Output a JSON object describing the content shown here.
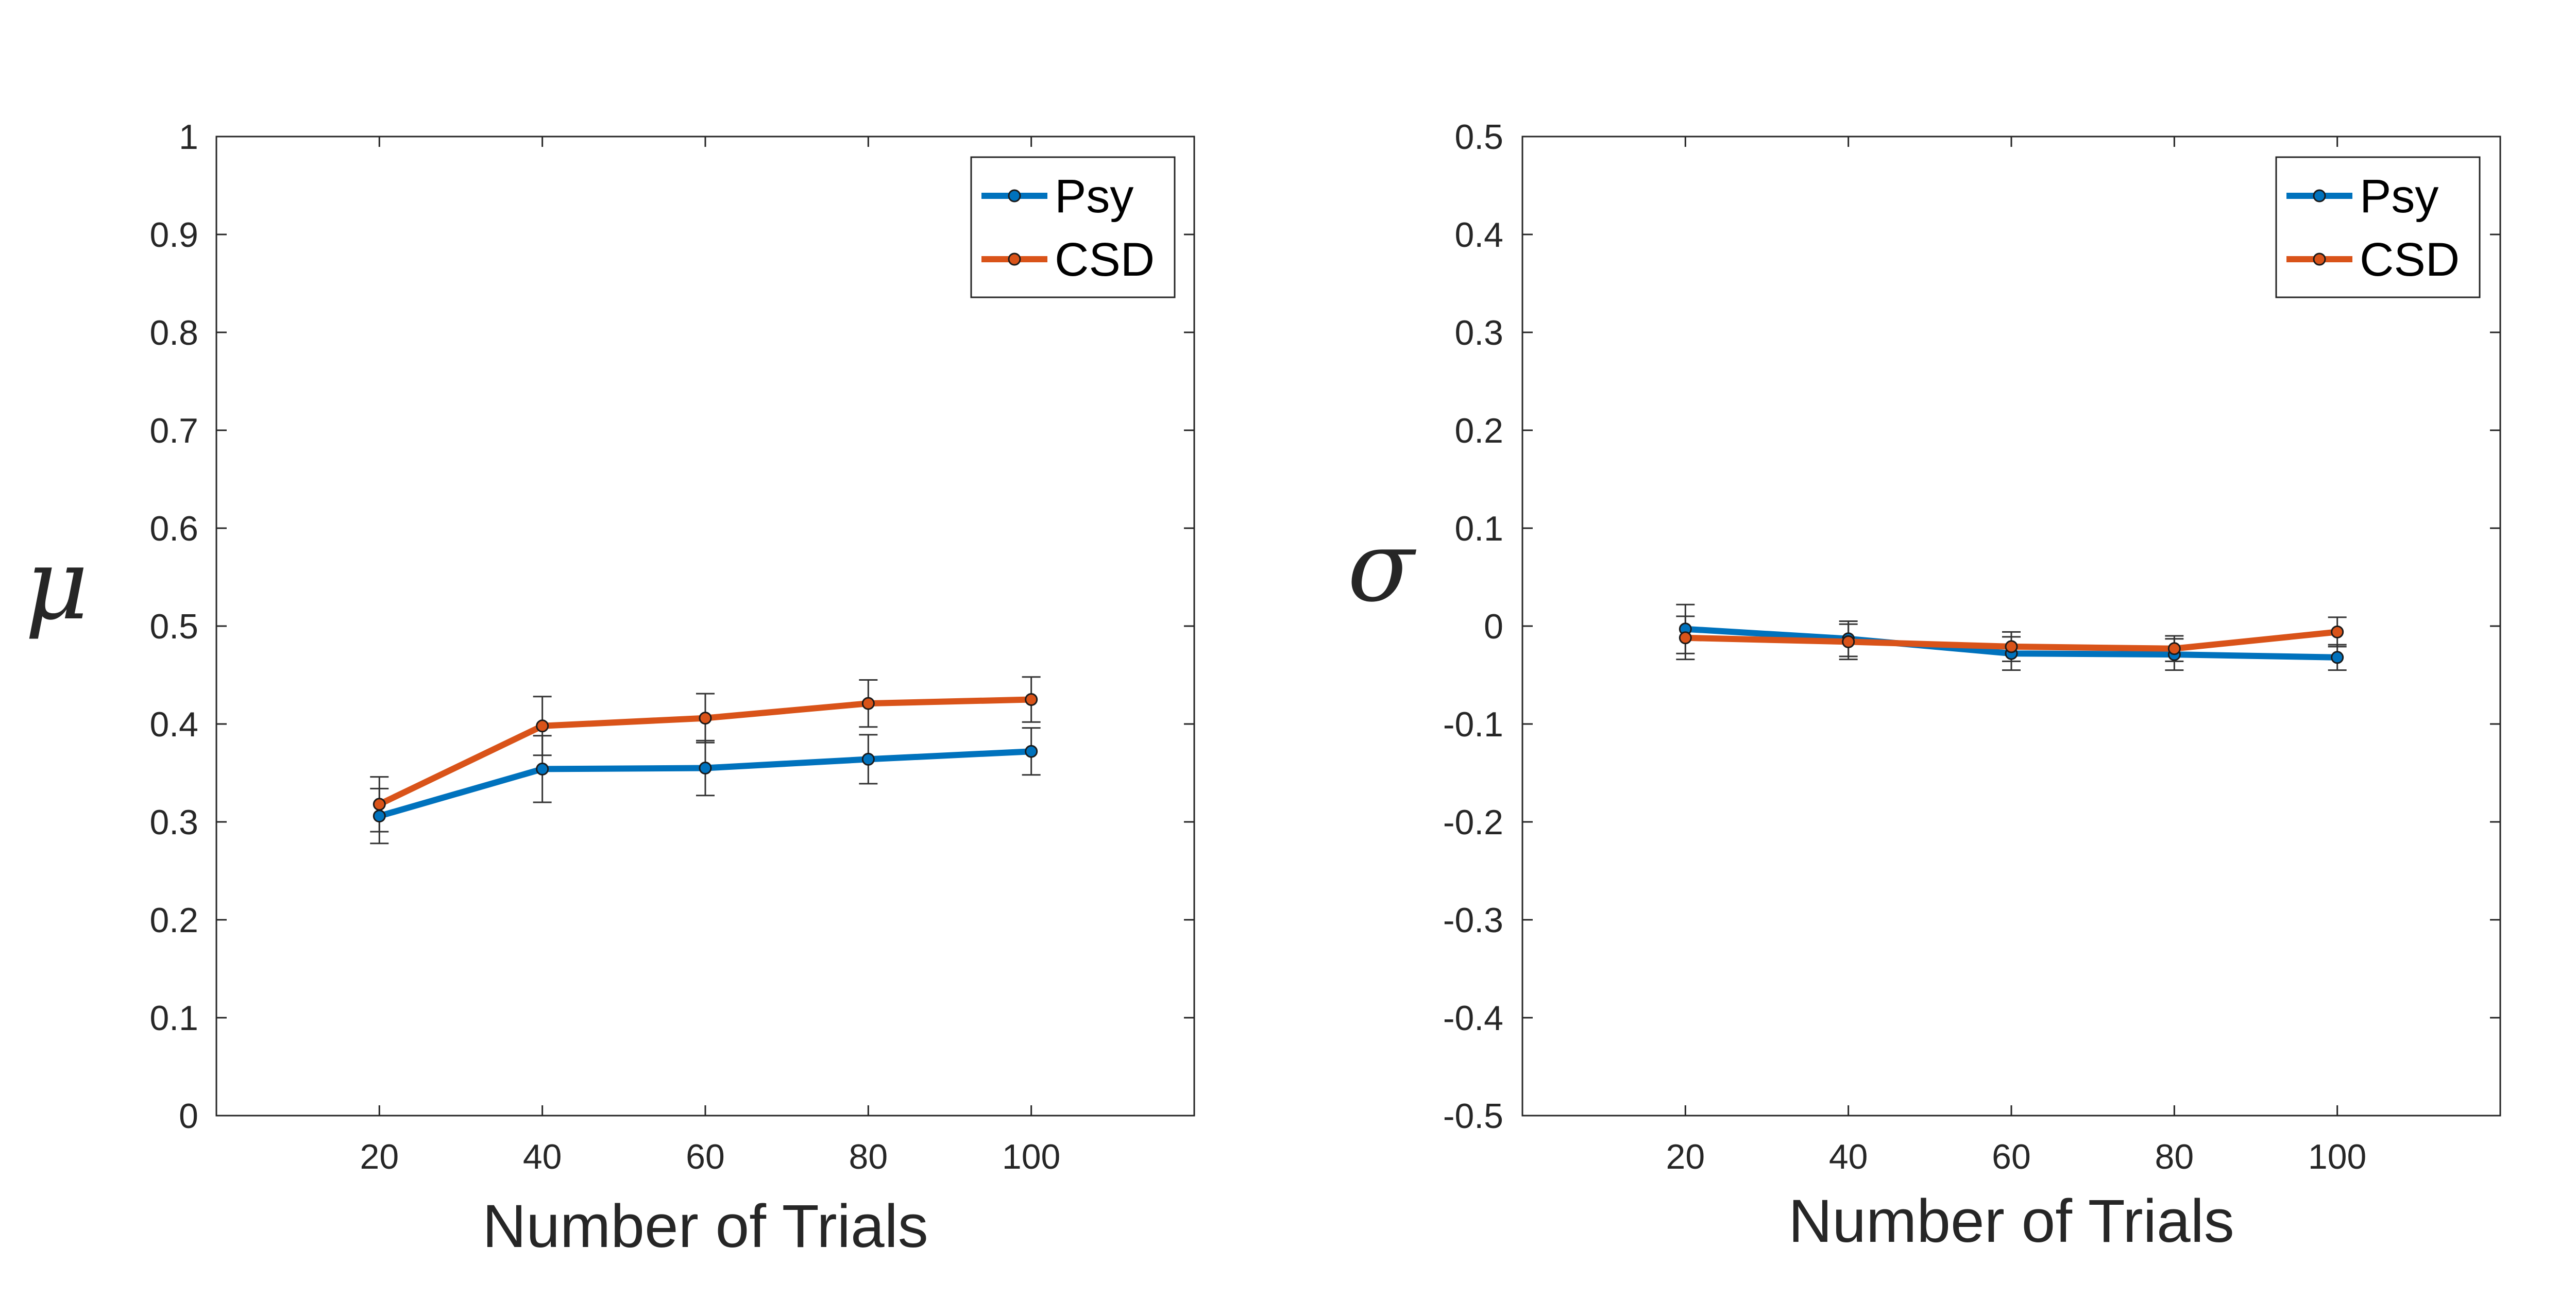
{
  "chart_data": [
    {
      "type": "line",
      "xlabel": "Number of Trials",
      "ylabel": "μ",
      "xlim": [
        0,
        120
      ],
      "ylim": [
        0,
        1
      ],
      "xticks": [
        20,
        40,
        60,
        80,
        100
      ],
      "yticks": [
        0,
        0.1,
        0.2,
        0.3,
        0.4,
        0.5,
        0.6,
        0.7,
        0.8,
        0.9,
        1
      ],
      "ytick_labels": [
        "0",
        "0.1",
        "0.2",
        "0.3",
        "0.4",
        "0.5",
        "0.6",
        "0.7",
        "0.8",
        "0.9",
        "1"
      ],
      "grid": false,
      "legend_position": "top-right",
      "x": [
        20,
        40,
        60,
        80,
        100
      ],
      "series": [
        {
          "name": "Psy",
          "color": "#0072BD",
          "values": [
            0.306,
            0.354,
            0.355,
            0.364,
            0.372
          ],
          "error": [
            0.028,
            0.034,
            0.028,
            0.025,
            0.024
          ]
        },
        {
          "name": "CSD",
          "color": "#D95319",
          "values": [
            0.318,
            0.398,
            0.406,
            0.421,
            0.425
          ],
          "error": [
            0.028,
            0.03,
            0.025,
            0.024,
            0.023
          ]
        }
      ]
    },
    {
      "type": "line",
      "xlabel": "Number of Trials",
      "ylabel": "σ",
      "xlim": [
        0,
        120
      ],
      "ylim": [
        -0.5,
        0.5
      ],
      "xticks": [
        20,
        40,
        60,
        80,
        100
      ],
      "yticks": [
        -0.5,
        -0.4,
        -0.3,
        -0.2,
        -0.1,
        0,
        0.1,
        0.2,
        0.3,
        0.4,
        0.5
      ],
      "ytick_labels": [
        "-0.5",
        "-0.4",
        "-0.3",
        "-0.2",
        "-0.1",
        "0",
        "0.1",
        "0.2",
        "0.3",
        "0.4",
        "0.5"
      ],
      "grid": false,
      "legend_position": "top-right",
      "x": [
        20,
        40,
        60,
        80,
        100
      ],
      "series": [
        {
          "name": "Psy",
          "color": "#0072BD",
          "values": [
            -0.003,
            -0.013,
            -0.028,
            -0.029,
            -0.032
          ],
          "error": [
            0.025,
            0.018,
            0.017,
            0.016,
            0.013
          ]
        },
        {
          "name": "CSD",
          "color": "#D95319",
          "values": [
            -0.012,
            -0.016,
            -0.021,
            -0.023,
            -0.006
          ],
          "error": [
            0.022,
            0.018,
            0.015,
            0.013,
            0.015
          ]
        }
      ]
    }
  ]
}
